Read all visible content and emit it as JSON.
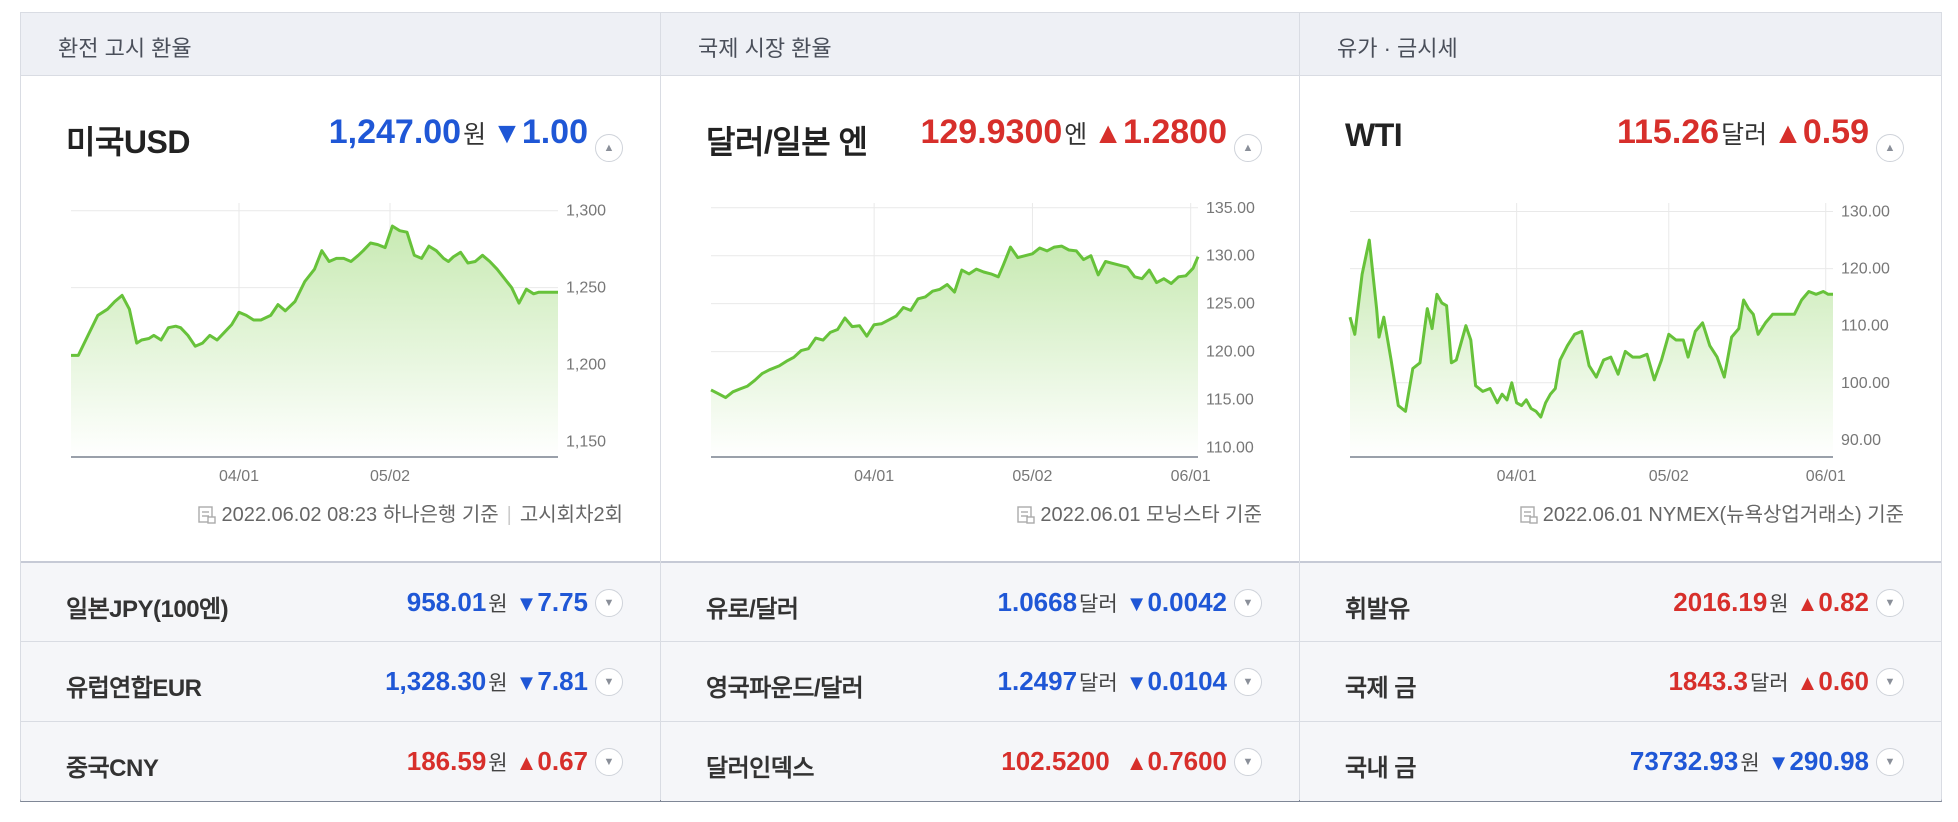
{
  "colors": {
    "up": "#d72f2b",
    "down": "#1f57d6",
    "line": "#67c23a",
    "area_top": "#c8eab3",
    "area_bottom": "#ffffff"
  },
  "panels": [
    {
      "header": "환전 고시 환율",
      "main": {
        "name": "미국USD",
        "value": "1,247.00",
        "unit": "원",
        "direction": "down",
        "arrow": "▼",
        "change": "1.00",
        "button_icon": "chevron-up-icon"
      },
      "source": {
        "icon": "document-icon",
        "text": "2022.06.02 08:23 하나은행 기준",
        "extra": "고시회차2회"
      },
      "rows": [
        {
          "name": "일본JPY(100엔)",
          "value": "958.01",
          "unit": "원",
          "direction": "down",
          "arrow": "▼",
          "change": "7.75"
        },
        {
          "name": "유럽연합EUR",
          "value": "1,328.30",
          "unit": "원",
          "direction": "down",
          "arrow": "▼",
          "change": "7.81"
        },
        {
          "name": "중국CNY",
          "value": "186.59",
          "unit": "원",
          "direction": "up",
          "arrow": "▲",
          "change": "0.67"
        }
      ]
    },
    {
      "header": "국제 시장 환율",
      "main": {
        "name": "달러/일본 엔",
        "value": "129.9300",
        "unit": "엔",
        "direction": "up",
        "arrow": "▲",
        "change": "1.2800",
        "button_icon": "chevron-up-icon"
      },
      "source": {
        "icon": "document-icon",
        "text": "2022.06.01 모닝스타 기준",
        "extra": ""
      },
      "rows": [
        {
          "name": "유로/달러",
          "value": "1.0668",
          "unit": "달러",
          "direction": "down",
          "arrow": "▼",
          "change": "0.0042"
        },
        {
          "name": "영국파운드/달러",
          "value": "1.2497",
          "unit": "달러",
          "direction": "down",
          "arrow": "▼",
          "change": "0.0104"
        },
        {
          "name": "달러인덱스",
          "value": "102.5200",
          "unit": "",
          "direction": "up",
          "arrow": "▲",
          "change": "0.7600"
        }
      ]
    },
    {
      "header": "유가 · 금시세",
      "main": {
        "name": "WTI",
        "value": "115.26",
        "unit": "달러",
        "direction": "up",
        "arrow": "▲",
        "change": "0.59",
        "button_icon": "chevron-up-icon"
      },
      "source": {
        "icon": "document-icon",
        "text": "2022.06.01 NYMEX(뉴욕상업거래소) 기준",
        "extra": ""
      },
      "rows": [
        {
          "name": "휘발유",
          "value": "2016.19",
          "unit": "원",
          "direction": "up",
          "arrow": "▲",
          "change": "0.82"
        },
        {
          "name": "국제 금",
          "value": "1843.3",
          "unit": "달러",
          "direction": "up",
          "arrow": "▲",
          "change": "0.60"
        },
        {
          "name": "국내 금",
          "value": "73732.93",
          "unit": "원",
          "direction": "down",
          "arrow": "▼",
          "change": "290.98"
        }
      ]
    }
  ],
  "chart_data": [
    {
      "type": "area",
      "grid": true,
      "y_axis_side": "right",
      "ylim": [
        1140,
        1305
      ],
      "yticks": [
        1150,
        1200,
        1250,
        1300
      ],
      "ytick_labels": [
        "1,150",
        "1,200",
        "1,250",
        "1,300"
      ],
      "xticks": [
        0.345,
        0.655
      ],
      "xtick_labels": [
        "04/01",
        "05/02"
      ],
      "x": [
        0.0,
        0.015,
        0.035,
        0.055,
        0.075,
        0.09,
        0.105,
        0.12,
        0.135,
        0.145,
        0.16,
        0.17,
        0.185,
        0.2,
        0.215,
        0.225,
        0.24,
        0.255,
        0.27,
        0.285,
        0.3,
        0.315,
        0.33,
        0.345,
        0.36,
        0.375,
        0.39,
        0.41,
        0.425,
        0.44,
        0.46,
        0.48,
        0.5,
        0.515,
        0.53,
        0.545,
        0.56,
        0.575,
        0.59,
        0.6,
        0.615,
        0.63,
        0.645,
        0.66,
        0.675,
        0.69,
        0.705,
        0.72,
        0.735,
        0.75,
        0.765,
        0.775,
        0.785,
        0.8,
        0.815,
        0.83,
        0.845,
        0.86,
        0.875,
        0.89,
        0.905,
        0.92,
        0.935,
        0.95,
        0.96,
        0.97,
        0.98,
        0.99,
        1.0
      ],
      "values": [
        1206,
        1206,
        1219,
        1232,
        1236,
        1241,
        1245,
        1236,
        1214,
        1216,
        1217,
        1219,
        1216,
        1224,
        1225,
        1224,
        1219,
        1212,
        1214,
        1219,
        1216,
        1221,
        1226,
        1234,
        1232,
        1229,
        1229,
        1232,
        1239,
        1235,
        1241,
        1254,
        1262,
        1274,
        1267,
        1269,
        1269,
        1267,
        1271,
        1274,
        1279,
        1278,
        1276,
        1290,
        1287,
        1286,
        1271,
        1269,
        1277,
        1274,
        1269,
        1267,
        1270,
        1273,
        1266,
        1267,
        1271,
        1267,
        1262,
        1256,
        1250,
        1240,
        1249,
        1246,
        1247,
        1247,
        1247,
        1247,
        1247
      ]
    },
    {
      "type": "area",
      "grid": true,
      "y_axis_side": "right",
      "ylim": [
        109,
        135.5
      ],
      "yticks": [
        110,
        115,
        120,
        125,
        130,
        135
      ],
      "ytick_labels": [
        "110.00",
        "115.00",
        "120.00",
        "125.00",
        "130.00",
        "135.00"
      ],
      "xticks": [
        0.335,
        0.66,
        0.985
      ],
      "xtick_labels": [
        "04/01",
        "05/02",
        "06/01"
      ],
      "x": [
        0.0,
        0.015,
        0.03,
        0.045,
        0.06,
        0.075,
        0.09,
        0.105,
        0.12,
        0.14,
        0.155,
        0.17,
        0.185,
        0.2,
        0.215,
        0.23,
        0.245,
        0.26,
        0.275,
        0.29,
        0.305,
        0.32,
        0.335,
        0.35,
        0.365,
        0.38,
        0.395,
        0.41,
        0.425,
        0.44,
        0.455,
        0.47,
        0.485,
        0.5,
        0.515,
        0.53,
        0.545,
        0.56,
        0.575,
        0.59,
        0.6,
        0.615,
        0.63,
        0.645,
        0.66,
        0.675,
        0.69,
        0.705,
        0.72,
        0.735,
        0.75,
        0.765,
        0.78,
        0.795,
        0.81,
        0.825,
        0.84,
        0.855,
        0.87,
        0.885,
        0.9,
        0.915,
        0.93,
        0.945,
        0.96,
        0.975,
        0.99,
        1.0
      ],
      "values": [
        116.0,
        115.6,
        115.2,
        115.8,
        116.1,
        116.4,
        117.0,
        117.7,
        118.1,
        118.5,
        119.0,
        119.4,
        120.1,
        120.3,
        121.4,
        121.2,
        122.0,
        122.3,
        123.5,
        122.6,
        122.7,
        121.6,
        122.8,
        122.9,
        123.3,
        123.7,
        124.6,
        124.3,
        125.5,
        125.7,
        126.3,
        126.5,
        127.0,
        126.2,
        128.5,
        128.1,
        128.6,
        128.3,
        128.1,
        127.8,
        129.0,
        130.9,
        129.8,
        130.0,
        130.2,
        130.8,
        130.5,
        130.9,
        131.0,
        130.6,
        130.5,
        129.6,
        130.0,
        128.0,
        129.4,
        129.2,
        129.0,
        128.8,
        127.8,
        127.6,
        128.5,
        127.2,
        127.6,
        127.1,
        127.8,
        127.9,
        128.7,
        129.9
      ]
    },
    {
      "type": "area",
      "grid": true,
      "y_axis_side": "right",
      "ylim": [
        87,
        131.5
      ],
      "yticks": [
        90,
        100,
        110,
        120,
        130
      ],
      "ytick_labels": [
        "90.00",
        "100.00",
        "110.00",
        "120.00",
        "130.00"
      ],
      "xticks": [
        0.345,
        0.66,
        0.985
      ],
      "xtick_labels": [
        "04/01",
        "05/02",
        "06/01"
      ],
      "x": [
        0.0,
        0.01,
        0.025,
        0.04,
        0.055,
        0.06,
        0.07,
        0.085,
        0.1,
        0.115,
        0.13,
        0.145,
        0.16,
        0.17,
        0.18,
        0.19,
        0.2,
        0.21,
        0.22,
        0.23,
        0.24,
        0.25,
        0.26,
        0.275,
        0.29,
        0.305,
        0.315,
        0.325,
        0.335,
        0.345,
        0.355,
        0.365,
        0.375,
        0.385,
        0.395,
        0.405,
        0.415,
        0.425,
        0.435,
        0.45,
        0.465,
        0.48,
        0.495,
        0.51,
        0.525,
        0.54,
        0.555,
        0.57,
        0.585,
        0.6,
        0.615,
        0.63,
        0.645,
        0.66,
        0.675,
        0.69,
        0.7,
        0.715,
        0.73,
        0.745,
        0.76,
        0.775,
        0.79,
        0.805,
        0.815,
        0.825,
        0.835,
        0.845,
        0.86,
        0.875,
        0.89,
        0.905,
        0.92,
        0.935,
        0.95,
        0.965,
        0.98,
        0.99,
        1.0
      ],
      "values": [
        111.5,
        108.5,
        119.0,
        125.0,
        113.0,
        108.0,
        111.5,
        104.0,
        96.0,
        95.0,
        102.5,
        103.5,
        113.0,
        109.5,
        115.5,
        114.0,
        113.5,
        103.5,
        104.0,
        107.0,
        110.0,
        107.5,
        99.5,
        98.5,
        99.0,
        96.5,
        98.0,
        97.0,
        100.0,
        96.5,
        96.0,
        97.0,
        95.5,
        95.0,
        94.0,
        96.5,
        98.0,
        99.0,
        104.0,
        106.5,
        108.5,
        109.0,
        103.0,
        101.0,
        104.0,
        104.5,
        101.5,
        105.5,
        104.5,
        104.5,
        105.0,
        100.5,
        104.0,
        108.5,
        107.5,
        107.5,
        104.5,
        109.0,
        110.5,
        106.5,
        104.5,
        101.0,
        108.0,
        109.5,
        114.5,
        113.0,
        112.0,
        108.5,
        110.5,
        112.0,
        112.0,
        112.0,
        112.0,
        114.5,
        116.0,
        115.5,
        116.0,
        115.5,
        115.5
      ]
    }
  ]
}
